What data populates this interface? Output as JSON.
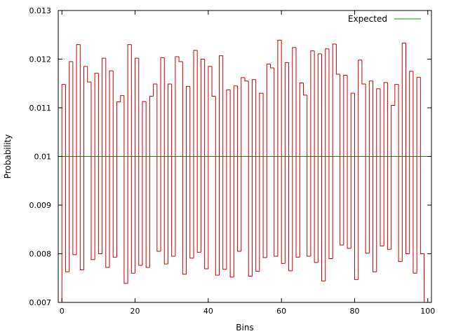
{
  "chart_data": {
    "type": "line",
    "style": "step-histogram",
    "xlabel": "Bins",
    "ylabel": "Probability",
    "xlim": [
      -1,
      101
    ],
    "ylim": [
      0.007,
      0.013
    ],
    "x_ticks": [
      0,
      20,
      40,
      60,
      80,
      100
    ],
    "x_tick_labels": [
      "0",
      "20",
      "40",
      "60",
      "80",
      "100"
    ],
    "y_ticks": [
      0.007,
      0.008,
      0.009,
      0.01,
      0.011,
      0.012,
      0.013
    ],
    "y_tick_labels": [
      "0.007",
      "0.008",
      "0.009",
      "0.01",
      "0.011",
      "0.012",
      "0.013"
    ],
    "grid": false,
    "legend": {
      "placement": "top-right",
      "entries": [
        "Expected"
      ]
    },
    "series": [
      {
        "color": "#cc0000",
        "x_start": 0,
        "bin_width": 1,
        "values": [
          0.01148,
          0.00763,
          0.01195,
          0.00798,
          0.0123,
          0.00767,
          0.01185,
          0.01153,
          0.00788,
          0.01171,
          0.008,
          0.01202,
          0.00772,
          0.01176,
          0.00793,
          0.01112,
          0.01125,
          0.00739,
          0.0123,
          0.0076,
          0.01202,
          0.00776,
          0.01113,
          0.00772,
          0.01124,
          0.01149,
          0.00805,
          0.01203,
          0.00779,
          0.01149,
          0.00795,
          0.01205,
          0.01195,
          0.00758,
          0.01144,
          0.00791,
          0.01218,
          0.00803,
          0.012,
          0.00769,
          0.01185,
          0.01124,
          0.00756,
          0.01207,
          0.00768,
          0.01137,
          0.00752,
          0.01145,
          0.00805,
          0.01162,
          0.01155,
          0.00754,
          0.01158,
          0.00764,
          0.0113,
          0.00792,
          0.0119,
          0.01182,
          0.00795,
          0.01239,
          0.0078,
          0.01193,
          0.00765,
          0.01224,
          0.00793,
          0.01151,
          0.01126,
          0.00795,
          0.01217,
          0.00782,
          0.01211,
          0.00744,
          0.01221,
          0.0079,
          0.01231,
          0.01169,
          0.00818,
          0.01167,
          0.00811,
          0.0113,
          0.00747,
          0.01198,
          0.01149,
          0.00801,
          0.01155,
          0.00763,
          0.01139,
          0.00816,
          0.01152,
          0.00809,
          0.01105,
          0.01148,
          0.00784,
          0.01233,
          0.008,
          0.01175,
          0.0076,
          0.01163,
          0.008
        ]
      },
      {
        "name": "Expected",
        "color": "#009900",
        "constant": 0.01
      }
    ]
  }
}
